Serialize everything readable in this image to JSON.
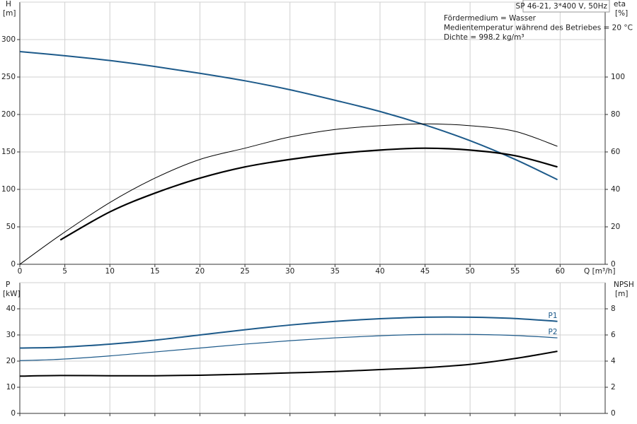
{
  "chart_data": [
    {
      "type": "line",
      "title": "SP 46-21, 3*400 V, 50Hz",
      "annotations": [
        "Fördermedium = Wasser",
        "Medientemperatur während des Betriebes = 20 °C",
        "Dichte = 998.2 kg/m³"
      ],
      "ylabel": "H",
      "yunit": "[m]",
      "y2label": "eta",
      "y2unit": "[%]",
      "xlabel": "Q [m³/h]",
      "show_xtick_labels": true,
      "x": [
        0,
        4.5,
        10,
        15,
        20,
        25,
        30,
        35,
        40,
        45,
        50,
        55,
        59.7
      ],
      "xlim": [
        0,
        65
      ],
      "xticks": [
        0,
        5,
        10,
        15,
        20,
        25,
        30,
        35,
        40,
        45,
        50,
        55,
        60
      ],
      "ylim": [
        0,
        350
      ],
      "yticks": [
        0,
        50,
        100,
        150,
        200,
        250,
        300
      ],
      "y2lim": [
        0,
        140
      ],
      "y2ticks": [
        0,
        20,
        40,
        60,
        80,
        100
      ],
      "grid": true,
      "series": [
        {
          "color": "#1d5a8a",
          "linewidth": 2,
          "values": [
            284,
            279,
            272,
            264,
            255,
            245,
            233,
            219,
            204,
            186,
            165,
            140,
            113
          ]
        },
        {
          "color": "#000000",
          "linewidth": 1,
          "axis": "y2",
          "values": [
            0,
            15.6,
            33,
            46,
            56,
            62,
            68,
            72,
            74,
            75,
            74,
            71,
            63
          ]
        },
        {
          "color": "#000000",
          "linewidth": 2.2,
          "axis": "y2",
          "values": [
            null,
            13,
            28,
            38,
            46,
            52,
            56,
            59,
            61,
            62,
            61,
            58,
            52
          ]
        }
      ]
    },
    {
      "type": "line",
      "ylabel": "P",
      "yunit": "[kW]",
      "y2label": "NPSH",
      "y2unit": "[m]",
      "show_xtick_labels": false,
      "x": [
        0,
        4.5,
        10,
        15,
        20,
        25,
        30,
        35,
        40,
        45,
        50,
        55,
        59.7
      ],
      "xlim": [
        0,
        65
      ],
      "xticks": [
        0,
        5,
        10,
        15,
        20,
        25,
        30,
        35,
        40,
        45,
        50,
        55,
        60
      ],
      "ylim": [
        0,
        50
      ],
      "yticks": [
        0,
        10,
        20,
        30,
        40
      ],
      "y2lim": [
        0,
        10
      ],
      "y2ticks": [
        0,
        2,
        4,
        6,
        8
      ],
      "grid": true,
      "series": [
        {
          "name": "P1",
          "color": "#1d5a8a",
          "linewidth": 2,
          "values": [
            25,
            25.3,
            26.5,
            28,
            30,
            32,
            33.8,
            35.2,
            36.2,
            36.8,
            36.8,
            36.3,
            35.2
          ]
        },
        {
          "name": "P2",
          "color": "#1d5a8a",
          "linewidth": 1.2,
          "values": [
            20.2,
            20.7,
            22,
            23.5,
            25,
            26.5,
            27.8,
            28.9,
            29.7,
            30.2,
            30.2,
            29.8,
            28.9
          ]
        },
        {
          "color": "#000000",
          "linewidth": 2,
          "axis": "y2",
          "values": [
            2.85,
            2.9,
            2.88,
            2.88,
            2.92,
            3.0,
            3.1,
            3.2,
            3.35,
            3.5,
            3.75,
            4.2,
            4.75
          ]
        }
      ]
    }
  ]
}
